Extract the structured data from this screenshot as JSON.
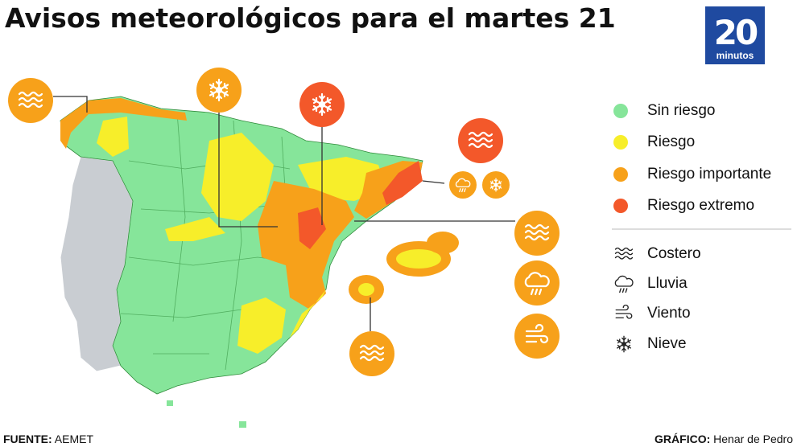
{
  "title": "Avisos meteorológicos para el martes 21",
  "logo": {
    "number": "20",
    "word": "minutos"
  },
  "legend": {
    "levels": [
      {
        "label": "Sin riesgo",
        "color": "#86e59a"
      },
      {
        "label": "Riesgo",
        "color": "#f7ee2a"
      },
      {
        "label": "Riesgo importante",
        "color": "#f7a11a"
      },
      {
        "label": "Riesgo extremo",
        "color": "#f3582a"
      }
    ],
    "phenomena": [
      {
        "label": "Costero"
      },
      {
        "label": "Lluvia"
      },
      {
        "label": "Viento"
      },
      {
        "label": "Nieve"
      }
    ]
  },
  "footer": {
    "source_label": "FUENTE:",
    "source": "AEMET",
    "credit_label": "GRÁFICO:",
    "credit": "Henar de Pedro"
  }
}
